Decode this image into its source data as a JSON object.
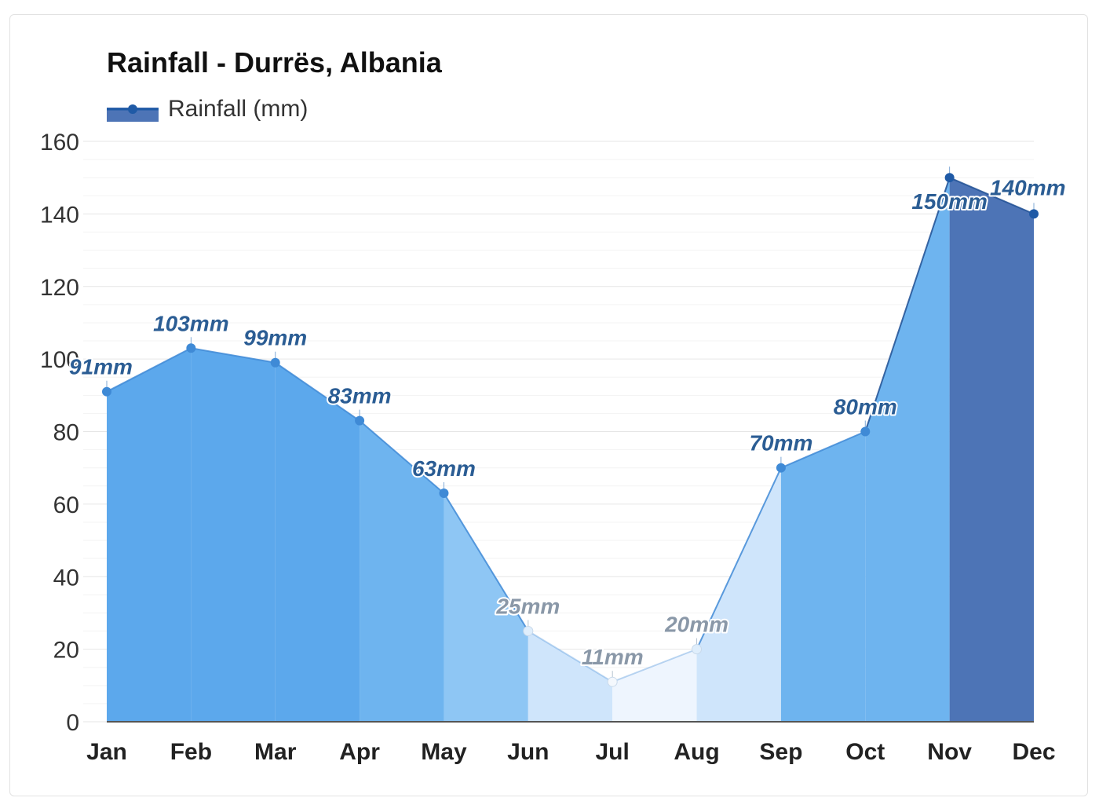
{
  "chart_data": {
    "type": "area",
    "title": "Rainfall - Durrës, Albania",
    "legend": {
      "label": "Rainfall (mm)",
      "placement": "top-left"
    },
    "categories": [
      "Jan",
      "Feb",
      "Mar",
      "Apr",
      "May",
      "Jun",
      "Jul",
      "Aug",
      "Sep",
      "Oct",
      "Nov",
      "Dec"
    ],
    "series": [
      {
        "name": "Rainfall (mm)",
        "values": [
          91,
          103,
          99,
          83,
          63,
          25,
          11,
          20,
          70,
          80,
          150,
          140
        ]
      }
    ],
    "data_labels": [
      "91mm",
      "103mm",
      "99mm",
      "83mm",
      "63mm",
      "25mm",
      "11mm",
      "20mm",
      "70mm",
      "80mm",
      "150mm",
      "140mm"
    ],
    "yticks": [
      "0",
      "20",
      "40",
      "60",
      "80",
      "100",
      "120",
      "140",
      "160"
    ],
    "ylim": [
      0,
      160
    ],
    "grid": true,
    "colors": {
      "wettest": "#4d74b6",
      "very_wet": "#5ca8ec",
      "wet": "#6eb4ef",
      "moderate": "#8ec6f4",
      "light": "#cfe5fb",
      "dry": "#eef5fe",
      "line": "#1f5aa6",
      "label_dark": "#2b5d94",
      "label_light": "#8a98a8"
    }
  }
}
